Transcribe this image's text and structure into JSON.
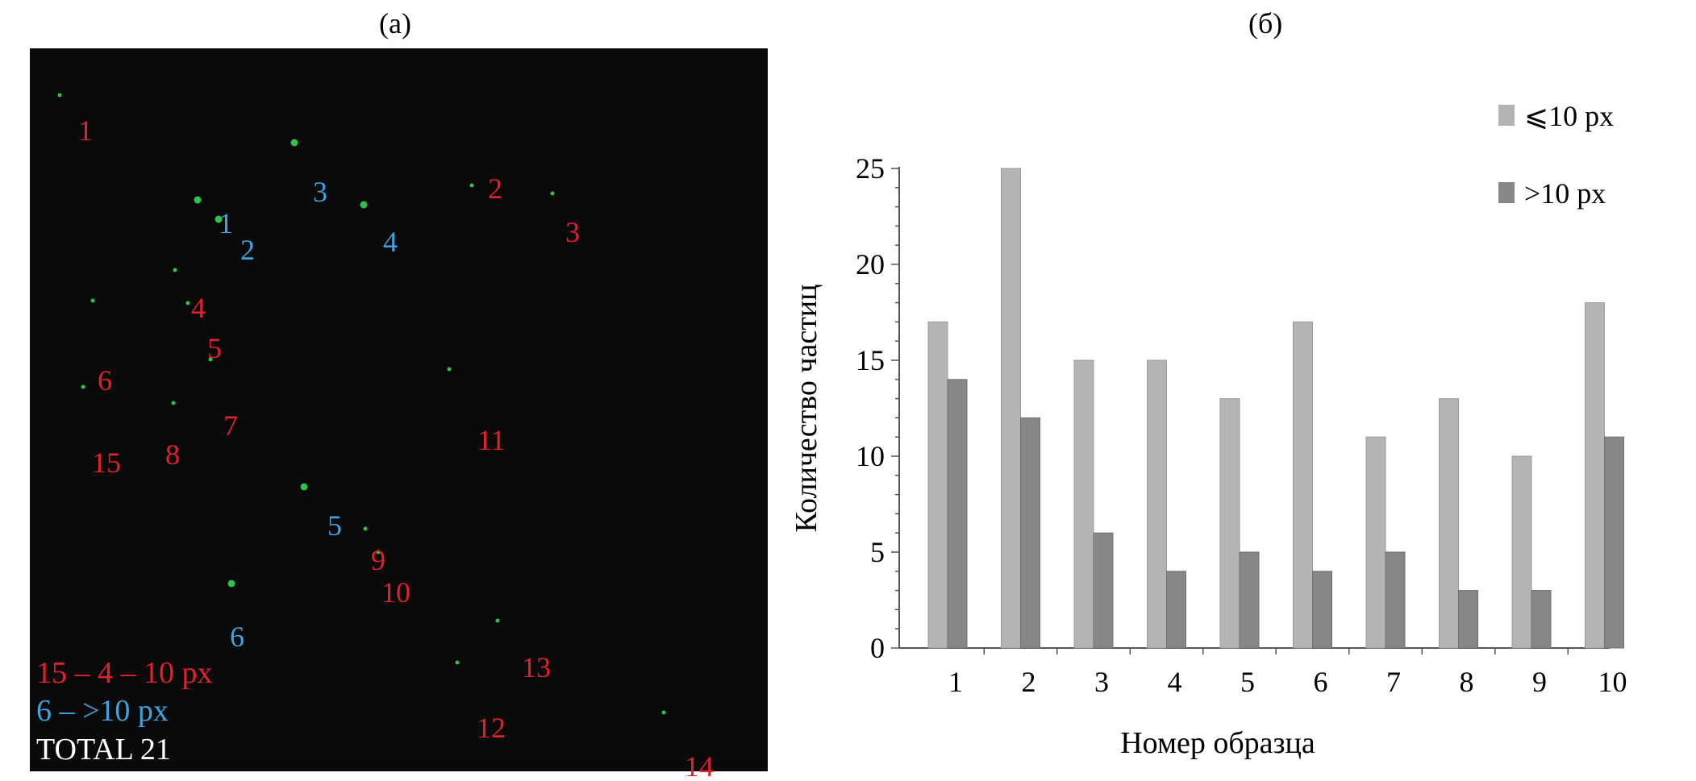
{
  "panel_a": {
    "label": "(а)",
    "red_labels": [
      "1",
      "2",
      "3",
      "4",
      "5",
      "6",
      "7",
      "8",
      "9",
      "10",
      "11",
      "12",
      "13",
      "14",
      "15"
    ],
    "blue_labels": [
      "1",
      "2",
      "3",
      "4",
      "5",
      "6"
    ],
    "legend_small": "15 – 4 – 10 px",
    "legend_large": "6 – >10 px",
    "legend_total": "TOTAL 21",
    "colors": {
      "background": "#0a0a0a",
      "small": "#e0202a",
      "large": "#3ba3e0",
      "particle": "#2fc24a",
      "total": "#ffffff"
    }
  },
  "panel_b": {
    "label": "(б)"
  },
  "chart_data": {
    "type": "bar",
    "categories": [
      "1",
      "2",
      "3",
      "4",
      "5",
      "6",
      "7",
      "8",
      "9",
      "10"
    ],
    "series": [
      {
        "name": "⩽10 px",
        "values": [
          17,
          25,
          15,
          15,
          13,
          17,
          11,
          13,
          10,
          18
        ],
        "color": "#b4b4b4"
      },
      {
        "name": ">10 px",
        "values": [
          14,
          12,
          6,
          4,
          5,
          4,
          5,
          3,
          3,
          11
        ],
        "color": "#878787"
      }
    ],
    "xlabel": "Номер образца",
    "ylabel": "Количество частиц",
    "ylim": [
      0,
      25
    ],
    "yticks": [
      "0",
      "5",
      "10",
      "15",
      "20",
      "25"
    ],
    "grid": false,
    "legend_position": "top-right"
  }
}
